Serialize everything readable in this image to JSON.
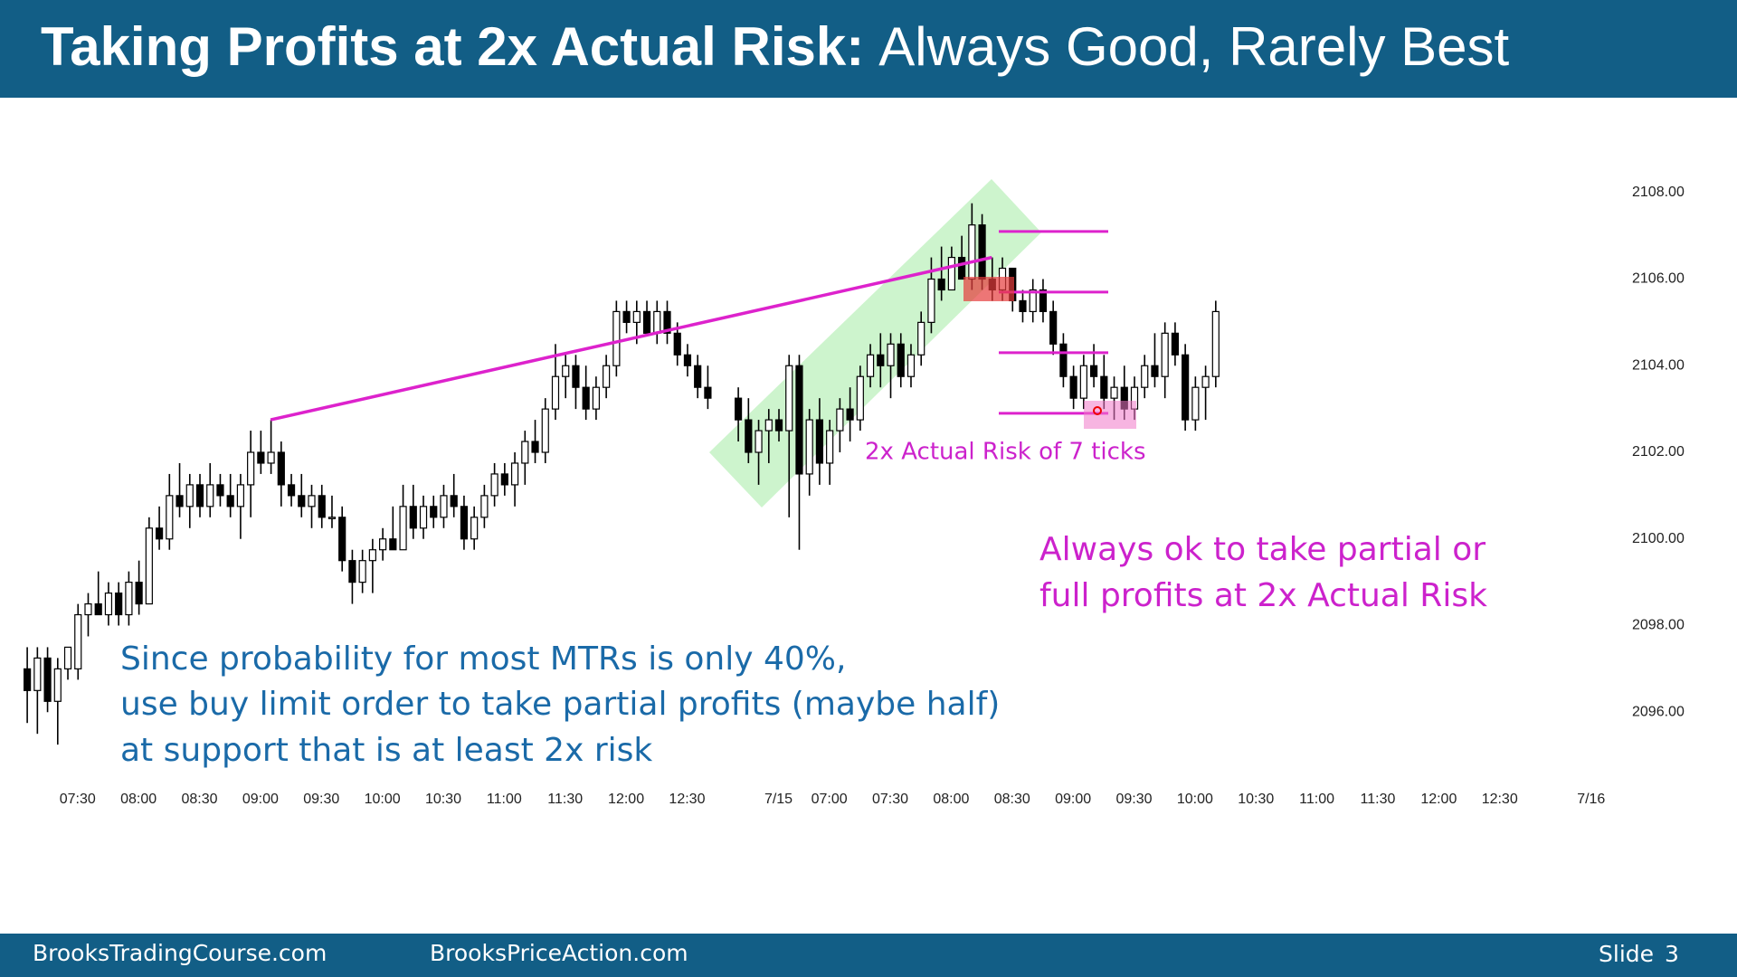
{
  "chart_data": {
    "type": "candlestick",
    "title_bold": "Taking Profits at 2x Actual Risk:",
    "title": "Always Good, Rarely Best",
    "annotations": {
      "risk_label": "2x Actual Risk of 7 ticks",
      "right_note": [
        "Always ok to take partial or",
        "full profits at 2x Actual Risk"
      ],
      "left_note": [
        "Since probability for most MTRs is only 40%,",
        "use buy limit order to take partial profits (maybe half)",
        "at support that is at least 2x risk"
      ]
    },
    "footer": {
      "left": "BrooksTradingCourse.com",
      "middle": "BrooksPriceAction.com",
      "slide_label": "Slide",
      "slide_number": 3
    },
    "risk_levels": [
      2107.1,
      2105.7,
      2104.3,
      2102.9
    ],
    "color_up": "#ffffff",
    "color_down": "#000000",
    "line_color": "#dd22cc",
    "xlim": [
      -0.5,
      155
    ],
    "ylim": [
      2094,
      2110
    ],
    "yticks": [
      {
        "value": 2096,
        "label": "2096.00"
      },
      {
        "value": 2098,
        "label": "2098.00"
      },
      {
        "value": 2100,
        "label": "2100.00"
      },
      {
        "value": 2102,
        "label": "2102.00"
      },
      {
        "value": 2104,
        "label": "2104.00"
      },
      {
        "value": 2106,
        "label": "2106.00"
      },
      {
        "value": 2108,
        "label": "2108.00"
      }
    ],
    "xticks": [
      {
        "value": 5,
        "label": "07:30"
      },
      {
        "value": 11,
        "label": "08:00"
      },
      {
        "value": 17,
        "label": "08:30"
      },
      {
        "value": 23,
        "label": "09:00"
      },
      {
        "value": 29,
        "label": "09:30"
      },
      {
        "value": 35,
        "label": "10:00"
      },
      {
        "value": 41,
        "label": "10:30"
      },
      {
        "value": 47,
        "label": "11:00"
      },
      {
        "value": 53,
        "label": "11:30"
      },
      {
        "value": 59,
        "label": "12:00"
      },
      {
        "value": 65,
        "label": "12:30"
      },
      {
        "value": 74,
        "label": "7/15"
      },
      {
        "value": 79,
        "label": "07:00"
      },
      {
        "value": 85,
        "label": "07:30"
      },
      {
        "value": 91,
        "label": "08:00"
      },
      {
        "value": 97,
        "label": "08:30"
      },
      {
        "value": 103,
        "label": "09:00"
      },
      {
        "value": 109,
        "label": "09:30"
      },
      {
        "value": 115,
        "label": "10:00"
      },
      {
        "value": 121,
        "label": "10:30"
      },
      {
        "value": 127,
        "label": "11:00"
      },
      {
        "value": 133,
        "label": "11:30"
      },
      {
        "value": 139,
        "label": "12:00"
      },
      {
        "value": 145,
        "label": "12:30"
      },
      {
        "value": 154,
        "label": "7/16"
      }
    ],
    "x": [
      0,
      1,
      2,
      3,
      4,
      5,
      6,
      7,
      8,
      9,
      10,
      11,
      12,
      13,
      14,
      15,
      16,
      17,
      18,
      19,
      20,
      21,
      22,
      23,
      24,
      25,
      26,
      27,
      28,
      29,
      30,
      31,
      32,
      33,
      34,
      35,
      36,
      37,
      38,
      39,
      40,
      41,
      42,
      43,
      44,
      45,
      46,
      47,
      48,
      49,
      50,
      51,
      52,
      53,
      54,
      55,
      56,
      57,
      58,
      59,
      60,
      61,
      62,
      63,
      64,
      65,
      66,
      67,
      70,
      71,
      72,
      73,
      74,
      75,
      76,
      77,
      78,
      79,
      80,
      81,
      82,
      83,
      84,
      85,
      86,
      87,
      88,
      89,
      90,
      91,
      92,
      93,
      94,
      95,
      96,
      97,
      98,
      99,
      100,
      101,
      102,
      103,
      104,
      105,
      106,
      107,
      108,
      109,
      110,
      111,
      112,
      113,
      114,
      115,
      116,
      117
    ],
    "candles": [
      [
        2097,
        2097.5,
        2095.75,
        2096.5
      ],
      [
        2096.5,
        2097.5,
        2095.5,
        2097.25
      ],
      [
        2097.25,
        2097.5,
        2096,
        2096.25
      ],
      [
        2096.25,
        2097.25,
        2095.25,
        2097
      ],
      [
        2097,
        2097.5,
        2096.75,
        2097.5
      ],
      [
        2097,
        2098.5,
        2096.75,
        2098.25
      ],
      [
        2098.25,
        2098.75,
        2097.75,
        2098.5
      ],
      [
        2098.5,
        2099.25,
        2098.25,
        2098.25
      ],
      [
        2098.25,
        2099,
        2098,
        2098.75
      ],
      [
        2098.75,
        2099,
        2098,
        2098.25
      ],
      [
        2098.25,
        2099.25,
        2098,
        2099
      ],
      [
        2099,
        2099.5,
        2098.25,
        2098.5
      ],
      [
        2098.5,
        2100.5,
        2098.5,
        2100.25
      ],
      [
        2100.25,
        2100.75,
        2099.75,
        2100
      ],
      [
        2100,
        2101.5,
        2099.75,
        2101
      ],
      [
        2101,
        2101.75,
        2100.5,
        2100.75
      ],
      [
        2100.75,
        2101.5,
        2100.25,
        2101.25
      ],
      [
        2101.25,
        2101.5,
        2100.5,
        2100.75
      ],
      [
        2100.75,
        2101.75,
        2100.5,
        2101.25
      ],
      [
        2101.25,
        2101.5,
        2100.75,
        2101
      ],
      [
        2101,
        2101.5,
        2100.5,
        2100.75
      ],
      [
        2100.75,
        2101.5,
        2100,
        2101.25
      ],
      [
        2101.25,
        2102.5,
        2100.5,
        2102
      ],
      [
        2102,
        2102.5,
        2101.5,
        2101.75
      ],
      [
        2101.75,
        2102.75,
        2101.5,
        2102
      ],
      [
        2102,
        2102.25,
        2100.75,
        2101.25
      ],
      [
        2101.25,
        2101.5,
        2100.75,
        2101
      ],
      [
        2101,
        2101.5,
        2100.5,
        2100.75
      ],
      [
        2100.75,
        2101.25,
        2100.25,
        2101
      ],
      [
        2101,
        2101.25,
        2100.25,
        2100.5
      ],
      [
        2100.5,
        2101,
        2100.25,
        2100.5
      ],
      [
        2100.5,
        2100.75,
        2099.25,
        2099.5
      ],
      [
        2099.5,
        2099.75,
        2098.5,
        2099
      ],
      [
        2099,
        2099.75,
        2098.75,
        2099.5
      ],
      [
        2099.5,
        2100,
        2098.75,
        2099.75
      ],
      [
        2099.75,
        2100.25,
        2099.5,
        2100
      ],
      [
        2100,
        2100.75,
        2099.75,
        2099.75
      ],
      [
        2099.75,
        2101.25,
        2099.75,
        2100.75
      ],
      [
        2100.75,
        2101.25,
        2100,
        2100.25
      ],
      [
        2100.25,
        2101,
        2100,
        2100.75
      ],
      [
        2100.75,
        2101,
        2100.25,
        2100.5
      ],
      [
        2100.5,
        2101.25,
        2100.25,
        2101
      ],
      [
        2101,
        2101.5,
        2100.5,
        2100.75
      ],
      [
        2100.75,
        2101,
        2099.75,
        2100
      ],
      [
        2100,
        2100.75,
        2099.75,
        2100.5
      ],
      [
        2100.5,
        2101.25,
        2100.25,
        2101
      ],
      [
        2101,
        2101.75,
        2100.75,
        2101.5
      ],
      [
        2101.5,
        2101.75,
        2101,
        2101.25
      ],
      [
        2101.25,
        2102,
        2100.75,
        2101.75
      ],
      [
        2101.75,
        2102.5,
        2101.25,
        2102.25
      ],
      [
        2102.25,
        2102.75,
        2101.75,
        2102
      ],
      [
        2102,
        2103.25,
        2101.75,
        2103
      ],
      [
        2103,
        2104.5,
        2102.75,
        2103.75
      ],
      [
        2103.75,
        2104.25,
        2103.25,
        2104
      ],
      [
        2104,
        2104.25,
        2103,
        2103.5
      ],
      [
        2103.5,
        2104,
        2102.75,
        2103
      ],
      [
        2103,
        2103.75,
        2102.75,
        2103.5
      ],
      [
        2103.5,
        2104.25,
        2103.25,
        2104
      ],
      [
        2104,
        2105.5,
        2103.75,
        2105.25
      ],
      [
        2105.25,
        2105.5,
        2104.75,
        2105
      ],
      [
        2105,
        2105.5,
        2104.5,
        2105.25
      ],
      [
        2105.25,
        2105.5,
        2104.75,
        2104.75
      ],
      [
        2104.75,
        2105.5,
        2104.5,
        2105.25
      ],
      [
        2105.25,
        2105.5,
        2104.5,
        2104.75
      ],
      [
        2104.75,
        2105,
        2104,
        2104.25
      ],
      [
        2104.25,
        2104.5,
        2103.75,
        2104
      ],
      [
        2104,
        2104.25,
        2103.25,
        2103.5
      ],
      [
        2103.5,
        2104,
        2103,
        2103.25
      ],
      [
        2103.25,
        2103.5,
        2102.25,
        2102.75
      ],
      [
        2102.75,
        2103.25,
        2101.75,
        2102
      ],
      [
        2102,
        2102.75,
        2101.25,
        2102.5
      ],
      [
        2102.5,
        2103,
        2101.75,
        2102.75
      ],
      [
        2102.75,
        2103,
        2102.25,
        2102.5
      ],
      [
        2102.5,
        2104.25,
        2100.5,
        2104
      ],
      [
        2104,
        2104.25,
        2099.75,
        2101.5
      ],
      [
        2101.5,
        2103,
        2101,
        2102.75
      ],
      [
        2102.75,
        2103.25,
        2101.25,
        2101.75
      ],
      [
        2101.75,
        2102.75,
        2101.25,
        2102.5
      ],
      [
        2102.5,
        2103.25,
        2102,
        2103
      ],
      [
        2103,
        2103.5,
        2102.25,
        2102.75
      ],
      [
        2102.75,
        2104,
        2102.5,
        2103.75
      ],
      [
        2103.75,
        2104.5,
        2103.5,
        2104.25
      ],
      [
        2104.25,
        2104.75,
        2103.5,
        2104
      ],
      [
        2104,
        2104.75,
        2103.25,
        2104.5
      ],
      [
        2104.5,
        2104.75,
        2103.5,
        2103.75
      ],
      [
        2103.75,
        2104.5,
        2103.5,
        2104.25
      ],
      [
        2104.25,
        2105.25,
        2104,
        2105
      ],
      [
        2105,
        2106.5,
        2104.75,
        2106
      ],
      [
        2106,
        2106.75,
        2105.5,
        2105.75
      ],
      [
        2105.75,
        2106.75,
        2105.75,
        2106.5
      ],
      [
        2106.5,
        2107,
        2106,
        2106
      ],
      [
        2106,
        2107.75,
        2105.75,
        2107.25
      ],
      [
        2107.25,
        2107.5,
        2105.75,
        2106
      ],
      [
        2106,
        2106.5,
        2105.5,
        2105.75
      ],
      [
        2105.75,
        2106.5,
        2105.5,
        2106.25
      ],
      [
        2106.25,
        2106.25,
        2105.25,
        2105.5
      ],
      [
        2105.5,
        2105.75,
        2105,
        2105.25
      ],
      [
        2105.25,
        2106,
        2105,
        2105.75
      ],
      [
        2105.75,
        2106,
        2105,
        2105.25
      ],
      [
        2105.25,
        2105.5,
        2104.25,
        2104.5
      ],
      [
        2104.5,
        2104.75,
        2103.5,
        2103.75
      ],
      [
        2103.75,
        2104,
        2103,
        2103.25
      ],
      [
        2103.25,
        2104.25,
        2103,
        2104
      ],
      [
        2104,
        2104.5,
        2103.5,
        2103.75
      ],
      [
        2103.75,
        2104.25,
        2103,
        2103.25
      ],
      [
        2103.25,
        2103.75,
        2102.75,
        2103.5
      ],
      [
        2103.5,
        2104,
        2102.75,
        2103
      ],
      [
        2103,
        2103.75,
        2102.75,
        2103.5
      ],
      [
        2103.5,
        2104.25,
        2103.25,
        2104
      ],
      [
        2104,
        2104.75,
        2103.5,
        2103.75
      ],
      [
        2103.75,
        2105,
        2103.25,
        2104.75
      ],
      [
        2104.75,
        2105,
        2104,
        2104.25
      ],
      [
        2104.25,
        2104.5,
        2102.5,
        2102.75
      ],
      [
        2102.75,
        2103.75,
        2102.5,
        2103.5
      ],
      [
        2103.5,
        2104,
        2102.75,
        2103.75
      ],
      [
        2103.75,
        2105.5,
        2103.5,
        2105.25
      ]
    ]
  }
}
